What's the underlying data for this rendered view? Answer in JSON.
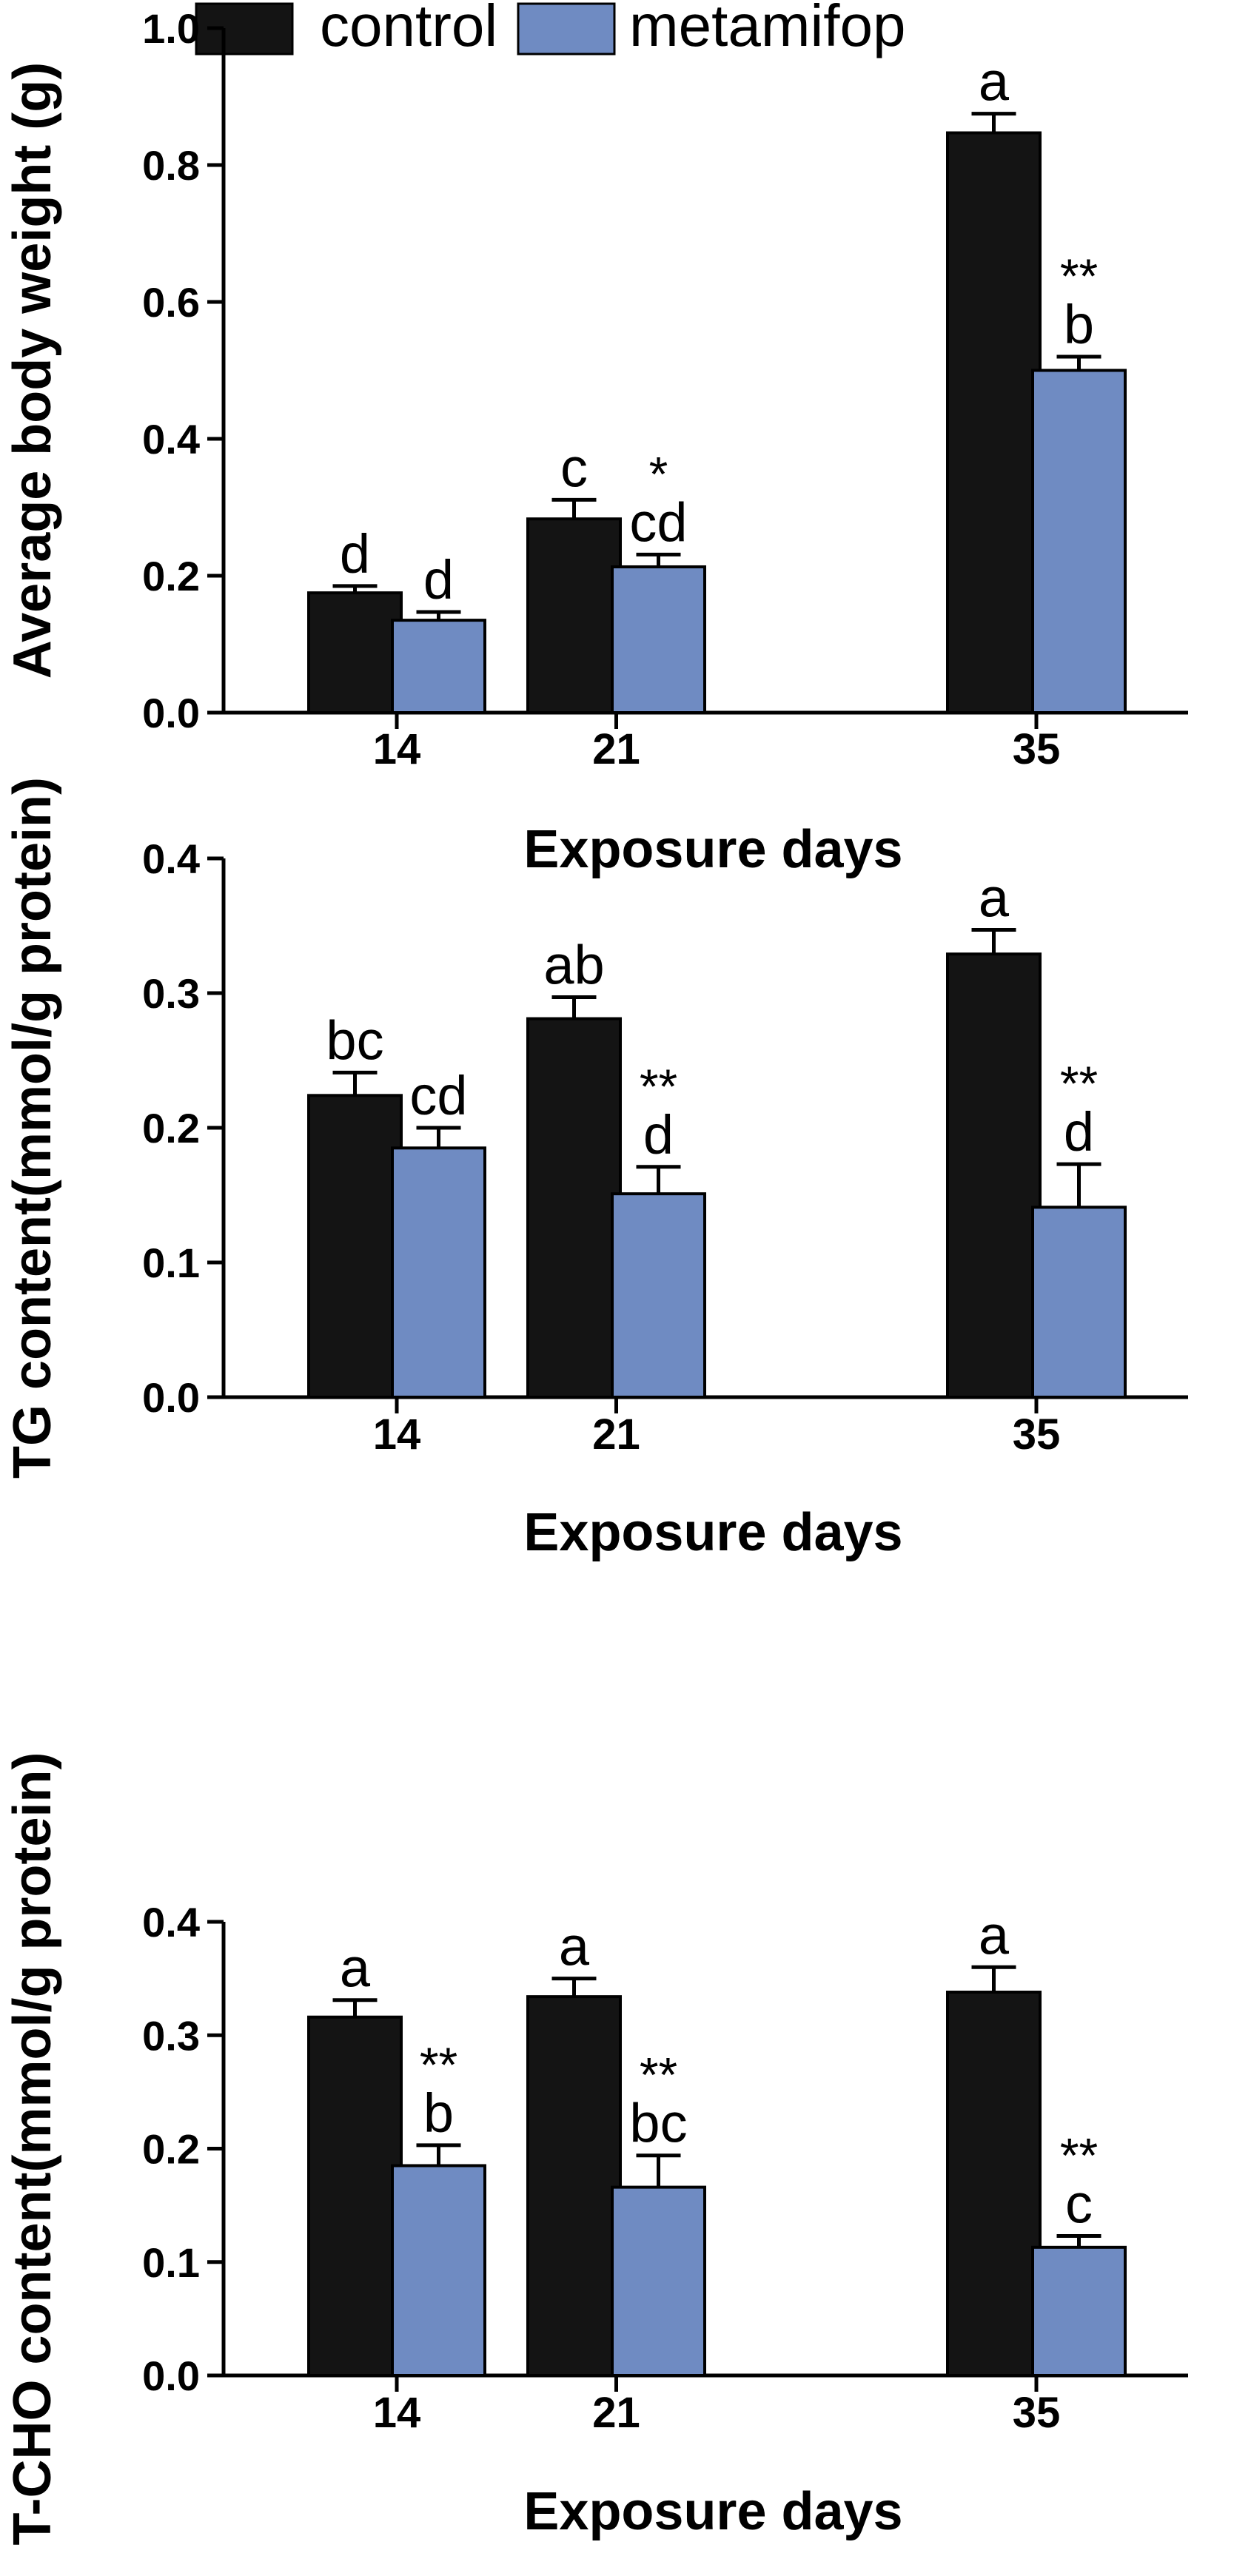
{
  "legend": [
    {
      "name": "control",
      "color": "#141414"
    },
    {
      "name": "metamifop",
      "color": "#6f8bc2"
    }
  ],
  "colors": {
    "control": "#141414",
    "metamifop": "#6f8bc2",
    "axis": "#000000"
  },
  "chart_data": [
    {
      "type": "bar",
      "categories": [
        "14",
        "21",
        "35"
      ],
      "xlabel": "Exposure days",
      "ylabel": "Average body weight (g)",
      "ylim": [
        0,
        1.0
      ],
      "yticks": [
        "0.0",
        "0.2",
        "0.4",
        "0.6",
        "0.8",
        "1.0"
      ],
      "series": [
        {
          "name": "control",
          "values": [
            0.175,
            0.283,
            0.847
          ],
          "errors": [
            0.01,
            0.028,
            0.028
          ],
          "letters": [
            "d",
            "c",
            "a"
          ],
          "stars": [
            "",
            "",
            ""
          ]
        },
        {
          "name": "metamifop",
          "values": [
            0.135,
            0.213,
            0.5
          ],
          "errors": [
            0.012,
            0.018,
            0.02
          ],
          "letters": [
            "d",
            "cd",
            "b"
          ],
          "stars": [
            "",
            "*",
            "**"
          ]
        }
      ]
    },
    {
      "type": "bar",
      "categories": [
        "14",
        "21",
        "35"
      ],
      "xlabel": "Exposure days",
      "ylabel": "TG content(mmol/g protein)",
      "ylim": [
        0,
        0.4
      ],
      "yticks": [
        "0.0",
        "0.1",
        "0.2",
        "0.3",
        "0.4"
      ],
      "series": [
        {
          "name": "control",
          "values": [
            0.224,
            0.281,
            0.329
          ],
          "errors": [
            0.017,
            0.016,
            0.018
          ],
          "letters": [
            "bc",
            "ab",
            "a"
          ],
          "stars": [
            "",
            "",
            ""
          ]
        },
        {
          "name": "metamifop",
          "values": [
            0.185,
            0.151,
            0.141
          ],
          "errors": [
            0.015,
            0.02,
            0.032
          ],
          "letters": [
            "cd",
            "d",
            "d"
          ],
          "stars": [
            "",
            "**",
            "**"
          ]
        }
      ]
    },
    {
      "type": "bar",
      "categories": [
        "14",
        "21",
        "35"
      ],
      "xlabel": "Exposure days",
      "ylabel": "T-CHO content(mmol/g protein)",
      "ylim": [
        0,
        0.4
      ],
      "yticks": [
        "0.0",
        "0.1",
        "0.2",
        "0.3",
        "0.4"
      ],
      "series": [
        {
          "name": "control",
          "values": [
            0.316,
            0.334,
            0.338
          ],
          "errors": [
            0.015,
            0.016,
            0.022
          ],
          "letters": [
            "a",
            "a",
            "a"
          ],
          "stars": [
            "",
            "",
            ""
          ]
        },
        {
          "name": "metamifop",
          "values": [
            0.185,
            0.166,
            0.113
          ],
          "errors": [
            0.018,
            0.028,
            0.01
          ],
          "letters": [
            "b",
            "bc",
            "c"
          ],
          "stars": [
            "**",
            "**",
            "**"
          ]
        }
      ]
    }
  ]
}
